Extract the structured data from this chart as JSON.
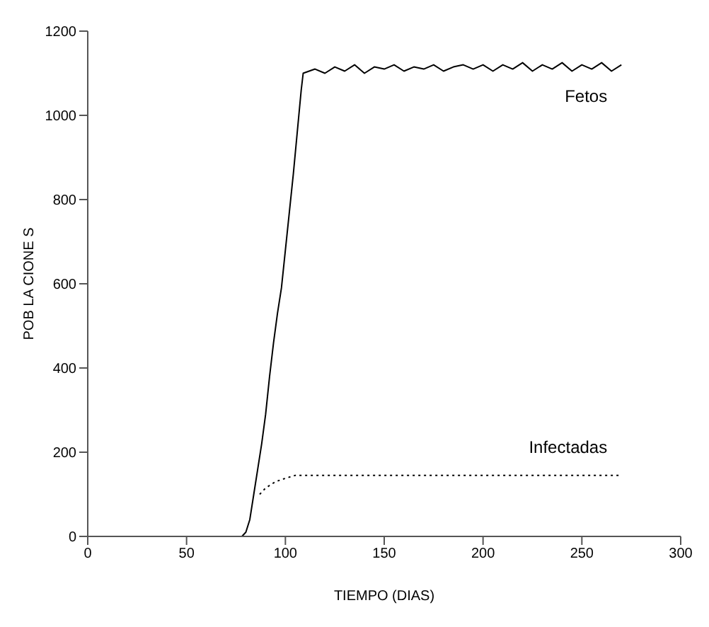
{
  "chart_data": {
    "type": "line",
    "xlabel": "TIEMPO (DIAS)",
    "ylabel": "POB LA CIONE S",
    "xlim": [
      0,
      300
    ],
    "xticks": [
      0,
      50,
      100,
      150,
      200,
      250,
      300
    ],
    "ylim": [
      0,
      1200
    ],
    "yticks": [
      0,
      200,
      400,
      600,
      800,
      1000,
      1200
    ],
    "grid": false,
    "legend": false,
    "marker": "none",
    "series": [
      {
        "name": "Fetos",
        "color": "#000000",
        "line_style": "solid",
        "x": [
          0,
          78,
          80,
          82,
          84,
          86,
          88,
          90,
          92,
          94,
          96,
          98,
          100,
          102,
          104,
          106,
          108,
          109,
          115,
          120,
          125,
          130,
          135,
          140,
          145,
          150,
          155,
          160,
          165,
          170,
          175,
          180,
          185,
          190,
          195,
          200,
          205,
          210,
          215,
          220,
          225,
          230,
          235,
          240,
          245,
          250,
          255,
          260,
          265,
          270
        ],
        "values": [
          0,
          0,
          10,
          40,
          100,
          160,
          220,
          290,
          380,
          460,
          530,
          590,
          680,
          770,
          860,
          960,
          1060,
          1100,
          1110,
          1100,
          1115,
          1105,
          1120,
          1100,
          1115,
          1110,
          1120,
          1105,
          1115,
          1110,
          1120,
          1105,
          1115,
          1120,
          1110,
          1120,
          1105,
          1120,
          1110,
          1125,
          1105,
          1120,
          1110,
          1125,
          1105,
          1120,
          1110,
          1125,
          1105,
          1120
        ]
      },
      {
        "name": "Infectadas",
        "color": "#000000",
        "line_style": "dotted",
        "x": [
          87,
          90,
          95,
          100,
          105,
          150,
          200,
          250,
          270
        ],
        "values": [
          100,
          115,
          130,
          138,
          145,
          145,
          145,
          145,
          145
        ]
      }
    ]
  }
}
